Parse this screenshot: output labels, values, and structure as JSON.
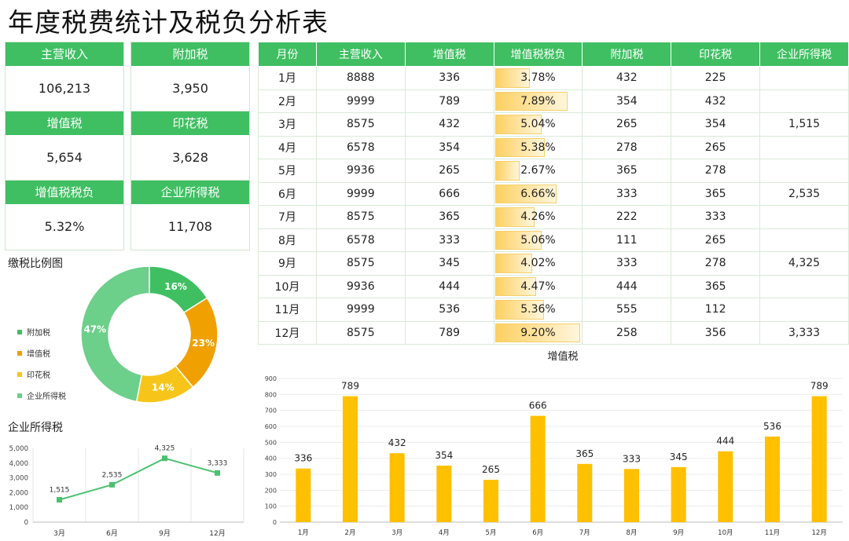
{
  "title": "年度税费统计及税负分析表",
  "kpis": [
    {
      "label": "主营收入",
      "value": "106,213"
    },
    {
      "label": "附加税",
      "value": "3,950"
    },
    {
      "label": "增值税",
      "value": "5,654"
    },
    {
      "label": "印花税",
      "value": "3,628"
    },
    {
      "label": "增值税税负",
      "value": "5.32%"
    },
    {
      "label": "企业所得税",
      "value": "11,708"
    }
  ],
  "table": {
    "headers": [
      "月份",
      "主营收入",
      "增值税",
      "增值税税负",
      "附加税",
      "印花税",
      "企业所得税"
    ],
    "rows": [
      [
        "1月",
        "8888",
        "336",
        "3.78%",
        "432",
        "225",
        ""
      ],
      [
        "2月",
        "9999",
        "789",
        "7.89%",
        "354",
        "432",
        ""
      ],
      [
        "3月",
        "8575",
        "432",
        "5.04%",
        "265",
        "354",
        "1,515"
      ],
      [
        "4月",
        "6578",
        "354",
        "5.38%",
        "278",
        "265",
        ""
      ],
      [
        "5月",
        "9936",
        "265",
        "2.67%",
        "365",
        "278",
        ""
      ],
      [
        "6月",
        "9999",
        "666",
        "6.66%",
        "333",
        "365",
        "2,535"
      ],
      [
        "7月",
        "8575",
        "365",
        "4.26%",
        "222",
        "333",
        ""
      ],
      [
        "8月",
        "6578",
        "333",
        "5.06%",
        "111",
        "265",
        ""
      ],
      [
        "9月",
        "8575",
        "345",
        "4.02%",
        "333",
        "278",
        "4,325"
      ],
      [
        "10月",
        "9936",
        "444",
        "4.47%",
        "444",
        "365",
        ""
      ],
      [
        "11月",
        "9999",
        "536",
        "5.36%",
        "555",
        "112",
        ""
      ],
      [
        "12月",
        "8575",
        "789",
        "9.20%",
        "258",
        "356",
        "3,333"
      ]
    ],
    "burden_values": [
      3.78,
      7.89,
      5.04,
      5.38,
      2.67,
      6.66,
      4.26,
      5.06,
      4.02,
      4.47,
      5.36,
      9.2
    ]
  },
  "donut_label": "缴税比例图",
  "corp_label": "企业所得税",
  "chart_data": [
    {
      "type": "pie",
      "title": "缴税比例图",
      "categories": [
        "附加税",
        "增值税",
        "印花税",
        "企业所得税"
      ],
      "values": [
        16,
        23,
        14,
        47
      ],
      "value_labels": [
        "16%",
        "23%",
        "14%",
        "47%"
      ],
      "colors": [
        "#3fbf62",
        "#f0a000",
        "#f7c51a",
        "#6ccf8a"
      ],
      "legend": "left"
    },
    {
      "type": "line",
      "title": "企业所得税",
      "categories": [
        "3月",
        "6月",
        "9月",
        "12月"
      ],
      "values": [
        1515,
        2535,
        4325,
        3333
      ],
      "value_labels": [
        "1,515",
        "2,535",
        "4,325",
        "3,333"
      ],
      "ylim": [
        0,
        5000
      ],
      "yticks": [
        "0",
        "1,000",
        "2,000",
        "3,000",
        "4,000",
        "5,000"
      ],
      "color": "#4cc170"
    },
    {
      "type": "bar",
      "title": "增值税",
      "categories": [
        "1月",
        "2月",
        "3月",
        "4月",
        "5月",
        "6月",
        "7月",
        "8月",
        "9月",
        "10月",
        "11月",
        "12月"
      ],
      "values": [
        336,
        789,
        432,
        354,
        265,
        666,
        365,
        333,
        345,
        444,
        536,
        789
      ],
      "ylim": [
        0,
        900
      ],
      "yticks": [
        "0",
        "100",
        "200",
        "300",
        "400",
        "500",
        "600",
        "700",
        "800",
        "900"
      ],
      "color": "#ffc000"
    }
  ]
}
